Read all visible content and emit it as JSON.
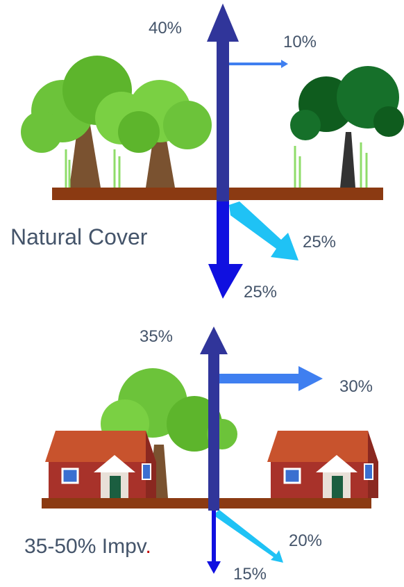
{
  "panels": [
    {
      "label": "Natural Cover",
      "arrows": {
        "up": "40%",
        "right": "10%",
        "diagonal": "25%",
        "down": "25%"
      }
    },
    {
      "label": "35-50% Impv",
      "label_end": ".",
      "arrows": {
        "up": "35%",
        "right": "30%",
        "diagonal": "20%",
        "down": "15%"
      }
    }
  ]
}
